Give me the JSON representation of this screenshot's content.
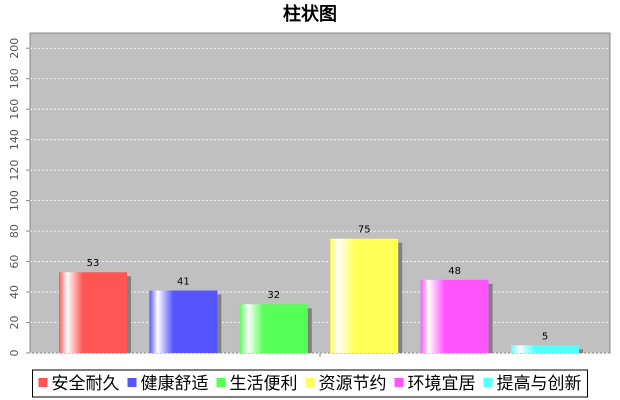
{
  "chart_data": {
    "type": "bar",
    "title": "柱状图",
    "categories": [
      null
    ],
    "series": [
      {
        "name": "安全耐久",
        "color": "#ff5555",
        "values": [
          53
        ]
      },
      {
        "name": "健康舒适",
        "color": "#5555ff",
        "values": [
          41
        ]
      },
      {
        "name": "生活便利",
        "color": "#55ff55",
        "values": [
          32
        ]
      },
      {
        "name": "资源节约",
        "color": "#ffff55",
        "values": [
          75
        ]
      },
      {
        "name": "环境宜居",
        "color": "#ff55ff",
        "values": [
          48
        ]
      },
      {
        "name": "提高与创新",
        "color": "#55ffff",
        "values": [
          5
        ]
      }
    ],
    "ylim": [
      0,
      210
    ],
    "yticks": [
      0,
      20,
      40,
      60,
      80,
      100,
      120,
      140,
      160,
      180,
      200
    ],
    "grid": true
  }
}
